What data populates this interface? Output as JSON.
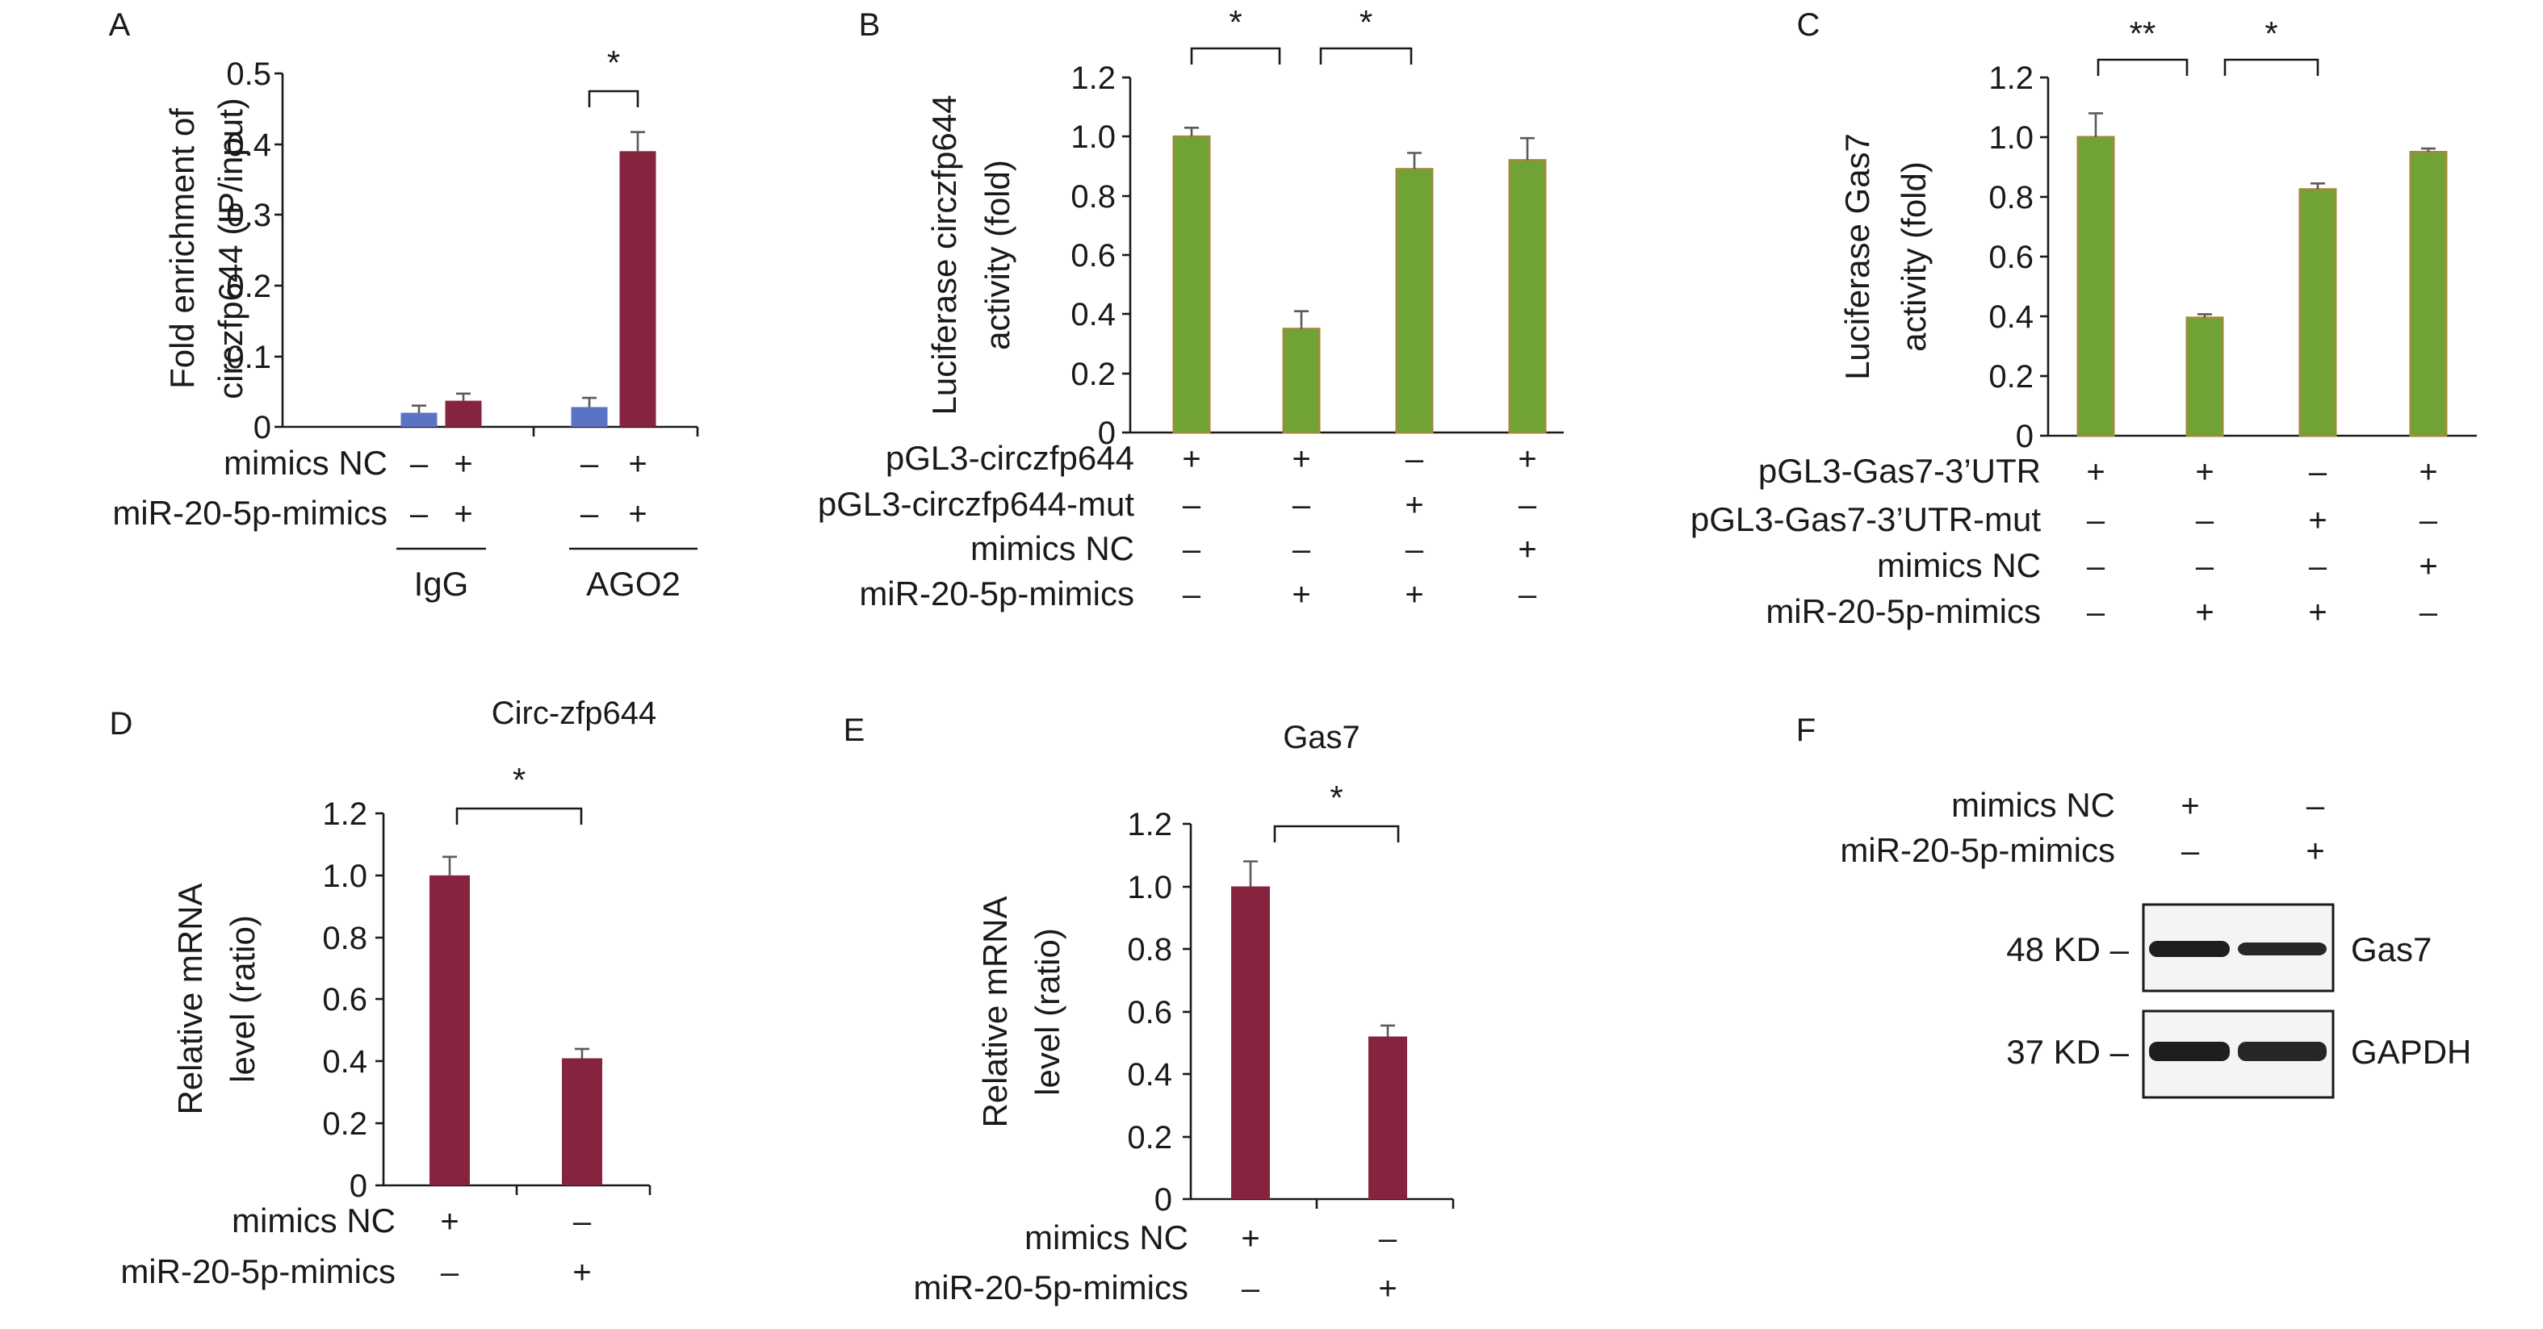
{
  "colors": {
    "ink": "#1a1a1a",
    "igg_blue": "#5b73c4",
    "maroon": "#862440",
    "green": "#70a236",
    "green_edge": "#9a8e3a"
  },
  "panels": [
    {
      "letter": "A",
      "type": "bar",
      "ylabel": [
        "Fold enrichment of",
        "circzfp644 (IP/input)"
      ],
      "ylim": [
        0,
        0.5
      ],
      "yticks": [
        "0",
        "0.1",
        "0.2",
        "0.3",
        "0.4",
        "0.5"
      ],
      "groups": [
        "IgG",
        "AGO2"
      ],
      "bars": [
        {
          "value": 0.02,
          "err": 0.01,
          "color": "blue"
        },
        {
          "value": 0.037,
          "err": 0.01,
          "color": "maroon"
        },
        {
          "value": 0.028,
          "err": 0.013,
          "color": "blue"
        },
        {
          "value": 0.39,
          "err": 0.027,
          "color": "maroon"
        }
      ],
      "significance": [
        "*"
      ],
      "rows": [
        {
          "label": "mimics NC",
          "signs": [
            "–",
            "+",
            "–",
            "+"
          ]
        },
        {
          "label": "miR-20-5p-mimics",
          "signs": [
            "–",
            "+",
            "–",
            "+"
          ]
        }
      ]
    },
    {
      "letter": "B",
      "type": "bar",
      "ylabel": [
        "Luciferase circzfp644",
        "activity (fold)"
      ],
      "ylim": [
        0,
        1.2
      ],
      "yticks": [
        "0",
        "0.2",
        "0.4",
        "0.6",
        "0.8",
        "1.0",
        "1.2"
      ],
      "bars": [
        {
          "value": 1.0,
          "err": 0.03,
          "color": "green"
        },
        {
          "value": 0.35,
          "err": 0.06,
          "color": "green"
        },
        {
          "value": 0.89,
          "err": 0.055,
          "color": "green"
        },
        {
          "value": 0.92,
          "err": 0.075,
          "color": "green"
        }
      ],
      "significance": [
        "*",
        "*"
      ],
      "rows": [
        {
          "label": "pGL3-circzfp644",
          "signs": [
            "+",
            "+",
            "–",
            "+"
          ]
        },
        {
          "label": "pGL3-circzfp644-mut",
          "signs": [
            "–",
            "–",
            "+",
            "–"
          ]
        },
        {
          "label": "mimics NC",
          "signs": [
            "–",
            "–",
            "–",
            "+"
          ]
        },
        {
          "label": "miR-20-5p-mimics",
          "signs": [
            "–",
            "+",
            "+",
            "–"
          ]
        }
      ]
    },
    {
      "letter": "C",
      "type": "bar",
      "ylabel": [
        "Luciferase Gas7",
        "activity (fold)"
      ],
      "ylim": [
        0,
        1.2
      ],
      "yticks": [
        "0",
        "0.2",
        "0.4",
        "0.6",
        "0.8",
        "1.0",
        "1.2"
      ],
      "bars": [
        {
          "value": 1.0,
          "err": 0.08,
          "color": "green"
        },
        {
          "value": 0.395,
          "err": 0.012,
          "color": "green"
        },
        {
          "value": 0.825,
          "err": 0.02,
          "color": "green"
        },
        {
          "value": 0.95,
          "err": 0.012,
          "color": "green"
        }
      ],
      "significance": [
        "**",
        "*"
      ],
      "rows": [
        {
          "label": "pGL3-Gas7-3’UTR",
          "signs": [
            "+",
            "+",
            "–",
            "+"
          ]
        },
        {
          "label": "pGL3-Gas7-3’UTR-mut",
          "signs": [
            "–",
            "–",
            "+",
            "–"
          ]
        },
        {
          "label": "mimics NC",
          "signs": [
            "–",
            "–",
            "–",
            "+"
          ]
        },
        {
          "label": "miR-20-5p-mimics",
          "signs": [
            "–",
            "+",
            "+",
            "–"
          ]
        }
      ]
    },
    {
      "letter": "D",
      "type": "bar",
      "title": "Circ-zfp644",
      "ylabel": [
        "Relative mRNA",
        "level (ratio)"
      ],
      "ylim": [
        0,
        1.2
      ],
      "yticks": [
        "0",
        "0.2",
        "0.4",
        "0.6",
        "0.8",
        "1.0",
        "1.2"
      ],
      "bars": [
        {
          "value": 1.0,
          "err": 0.06,
          "color": "maroon"
        },
        {
          "value": 0.41,
          "err": 0.03,
          "color": "maroon"
        }
      ],
      "significance": [
        "*"
      ],
      "rows": [
        {
          "label": "mimics NC",
          "signs": [
            "+",
            "–"
          ]
        },
        {
          "label": "miR-20-5p-mimics",
          "signs": [
            "–",
            "+"
          ]
        }
      ]
    },
    {
      "letter": "E",
      "type": "bar",
      "title": "Gas7",
      "ylabel": [
        "Relative mRNA",
        "level (ratio)"
      ],
      "ylim": [
        0,
        1.2
      ],
      "yticks": [
        "0",
        "0.2",
        "0.4",
        "0.6",
        "0.8",
        "1.0",
        "1.2"
      ],
      "bars": [
        {
          "value": 1.0,
          "err": 0.08,
          "color": "maroon"
        },
        {
          "value": 0.52,
          "err": 0.035,
          "color": "maroon"
        }
      ],
      "significance": [
        "*"
      ],
      "rows": [
        {
          "label": "mimics NC",
          "signs": [
            "+",
            "–"
          ]
        },
        {
          "label": "miR-20-5p-mimics",
          "signs": [
            "–",
            "+"
          ]
        }
      ]
    },
    {
      "letter": "F",
      "type": "blot",
      "rows": [
        {
          "label": "mimics NC",
          "signs": [
            "+",
            "–"
          ]
        },
        {
          "label": "miR-20-5p-mimics",
          "signs": [
            "–",
            "+"
          ]
        }
      ],
      "blots": [
        {
          "marker": "48 KD –",
          "protein": "Gas7"
        },
        {
          "marker": "37 KD –",
          "protein": "GAPDH"
        }
      ]
    }
  ],
  "chart_data": [
    {
      "type": "bar",
      "panel": "A",
      "categories": [
        "IgG",
        "AGO2"
      ],
      "series": [
        {
          "values": [
            0.02,
            0.028
          ],
          "errors": [
            0.01,
            0.013
          ]
        },
        {
          "values": [
            0.037,
            0.39
          ],
          "errors": [
            0.01,
            0.027
          ]
        }
      ],
      "ylabel": "Fold enrichment of circzfp644 (IP/input)",
      "ylim": [
        0,
        0.5
      ],
      "grid": false
    },
    {
      "type": "bar",
      "panel": "B",
      "values": [
        1.0,
        0.35,
        0.89,
        0.92
      ],
      "errors": [
        0.03,
        0.06,
        0.055,
        0.075
      ],
      "ylabel": "Luciferase circzfp644 activity (fold)",
      "ylim": [
        0,
        1.2
      ],
      "grid": false
    },
    {
      "type": "bar",
      "panel": "C",
      "values": [
        1.0,
        0.395,
        0.825,
        0.95
      ],
      "errors": [
        0.08,
        0.012,
        0.02,
        0.012
      ],
      "ylabel": "Luciferase Gas7 activity (fold)",
      "ylim": [
        0,
        1.2
      ],
      "grid": false
    },
    {
      "type": "bar",
      "panel": "D",
      "title": "Circ-zfp644",
      "values": [
        1.0,
        0.41
      ],
      "errors": [
        0.06,
        0.03
      ],
      "ylabel": "Relative mRNA level (ratio)",
      "ylim": [
        0,
        1.2
      ],
      "grid": false
    },
    {
      "type": "bar",
      "panel": "E",
      "title": "Gas7",
      "values": [
        1.0,
        0.52
      ],
      "errors": [
        0.08,
        0.035
      ],
      "ylabel": "Relative mRNA level (ratio)",
      "ylim": [
        0,
        1.2
      ],
      "grid": false
    }
  ]
}
